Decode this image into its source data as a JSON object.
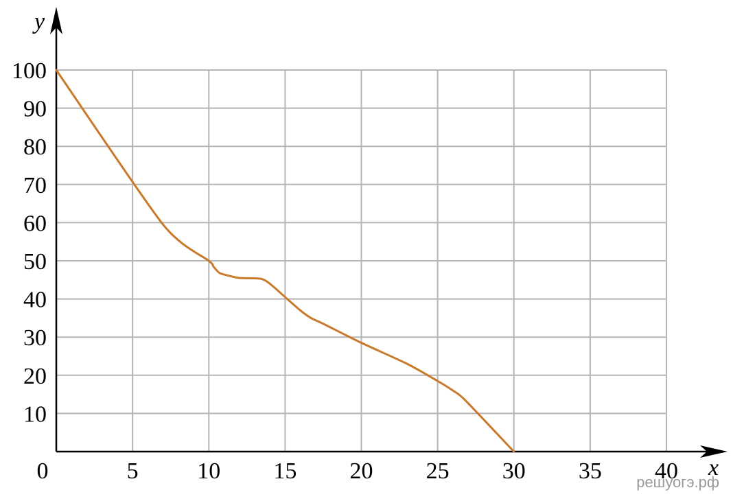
{
  "chart_data": {
    "type": "line",
    "xlabel": "x",
    "ylabel": "y",
    "xlim": [
      0,
      40
    ],
    "ylim": [
      0,
      100
    ],
    "x_ticks": [
      0,
      5,
      10,
      15,
      20,
      25,
      30,
      35,
      40
    ],
    "y_ticks": [
      10,
      20,
      30,
      40,
      50,
      60,
      70,
      80,
      90,
      100
    ],
    "origin_label": "0",
    "grid": true,
    "series": [
      {
        "color": "#c87a2a",
        "points": [
          [
            0,
            100
          ],
          [
            7,
            59.5
          ],
          [
            10,
            50
          ],
          [
            10.3,
            48.5
          ],
          [
            10.7,
            46.8
          ],
          [
            11.2,
            46.2
          ],
          [
            12,
            45.5
          ],
          [
            13.4,
            45.3
          ],
          [
            14,
            44
          ],
          [
            15,
            40.5
          ],
          [
            16,
            37
          ],
          [
            16.7,
            35
          ],
          [
            17.5,
            33.5
          ],
          [
            20,
            28.5
          ],
          [
            23,
            23
          ],
          [
            25,
            18.5
          ],
          [
            26,
            16
          ],
          [
            26.8,
            13.5
          ],
          [
            30,
            0
          ]
        ]
      }
    ]
  },
  "watermark": "решуогэ.рф"
}
